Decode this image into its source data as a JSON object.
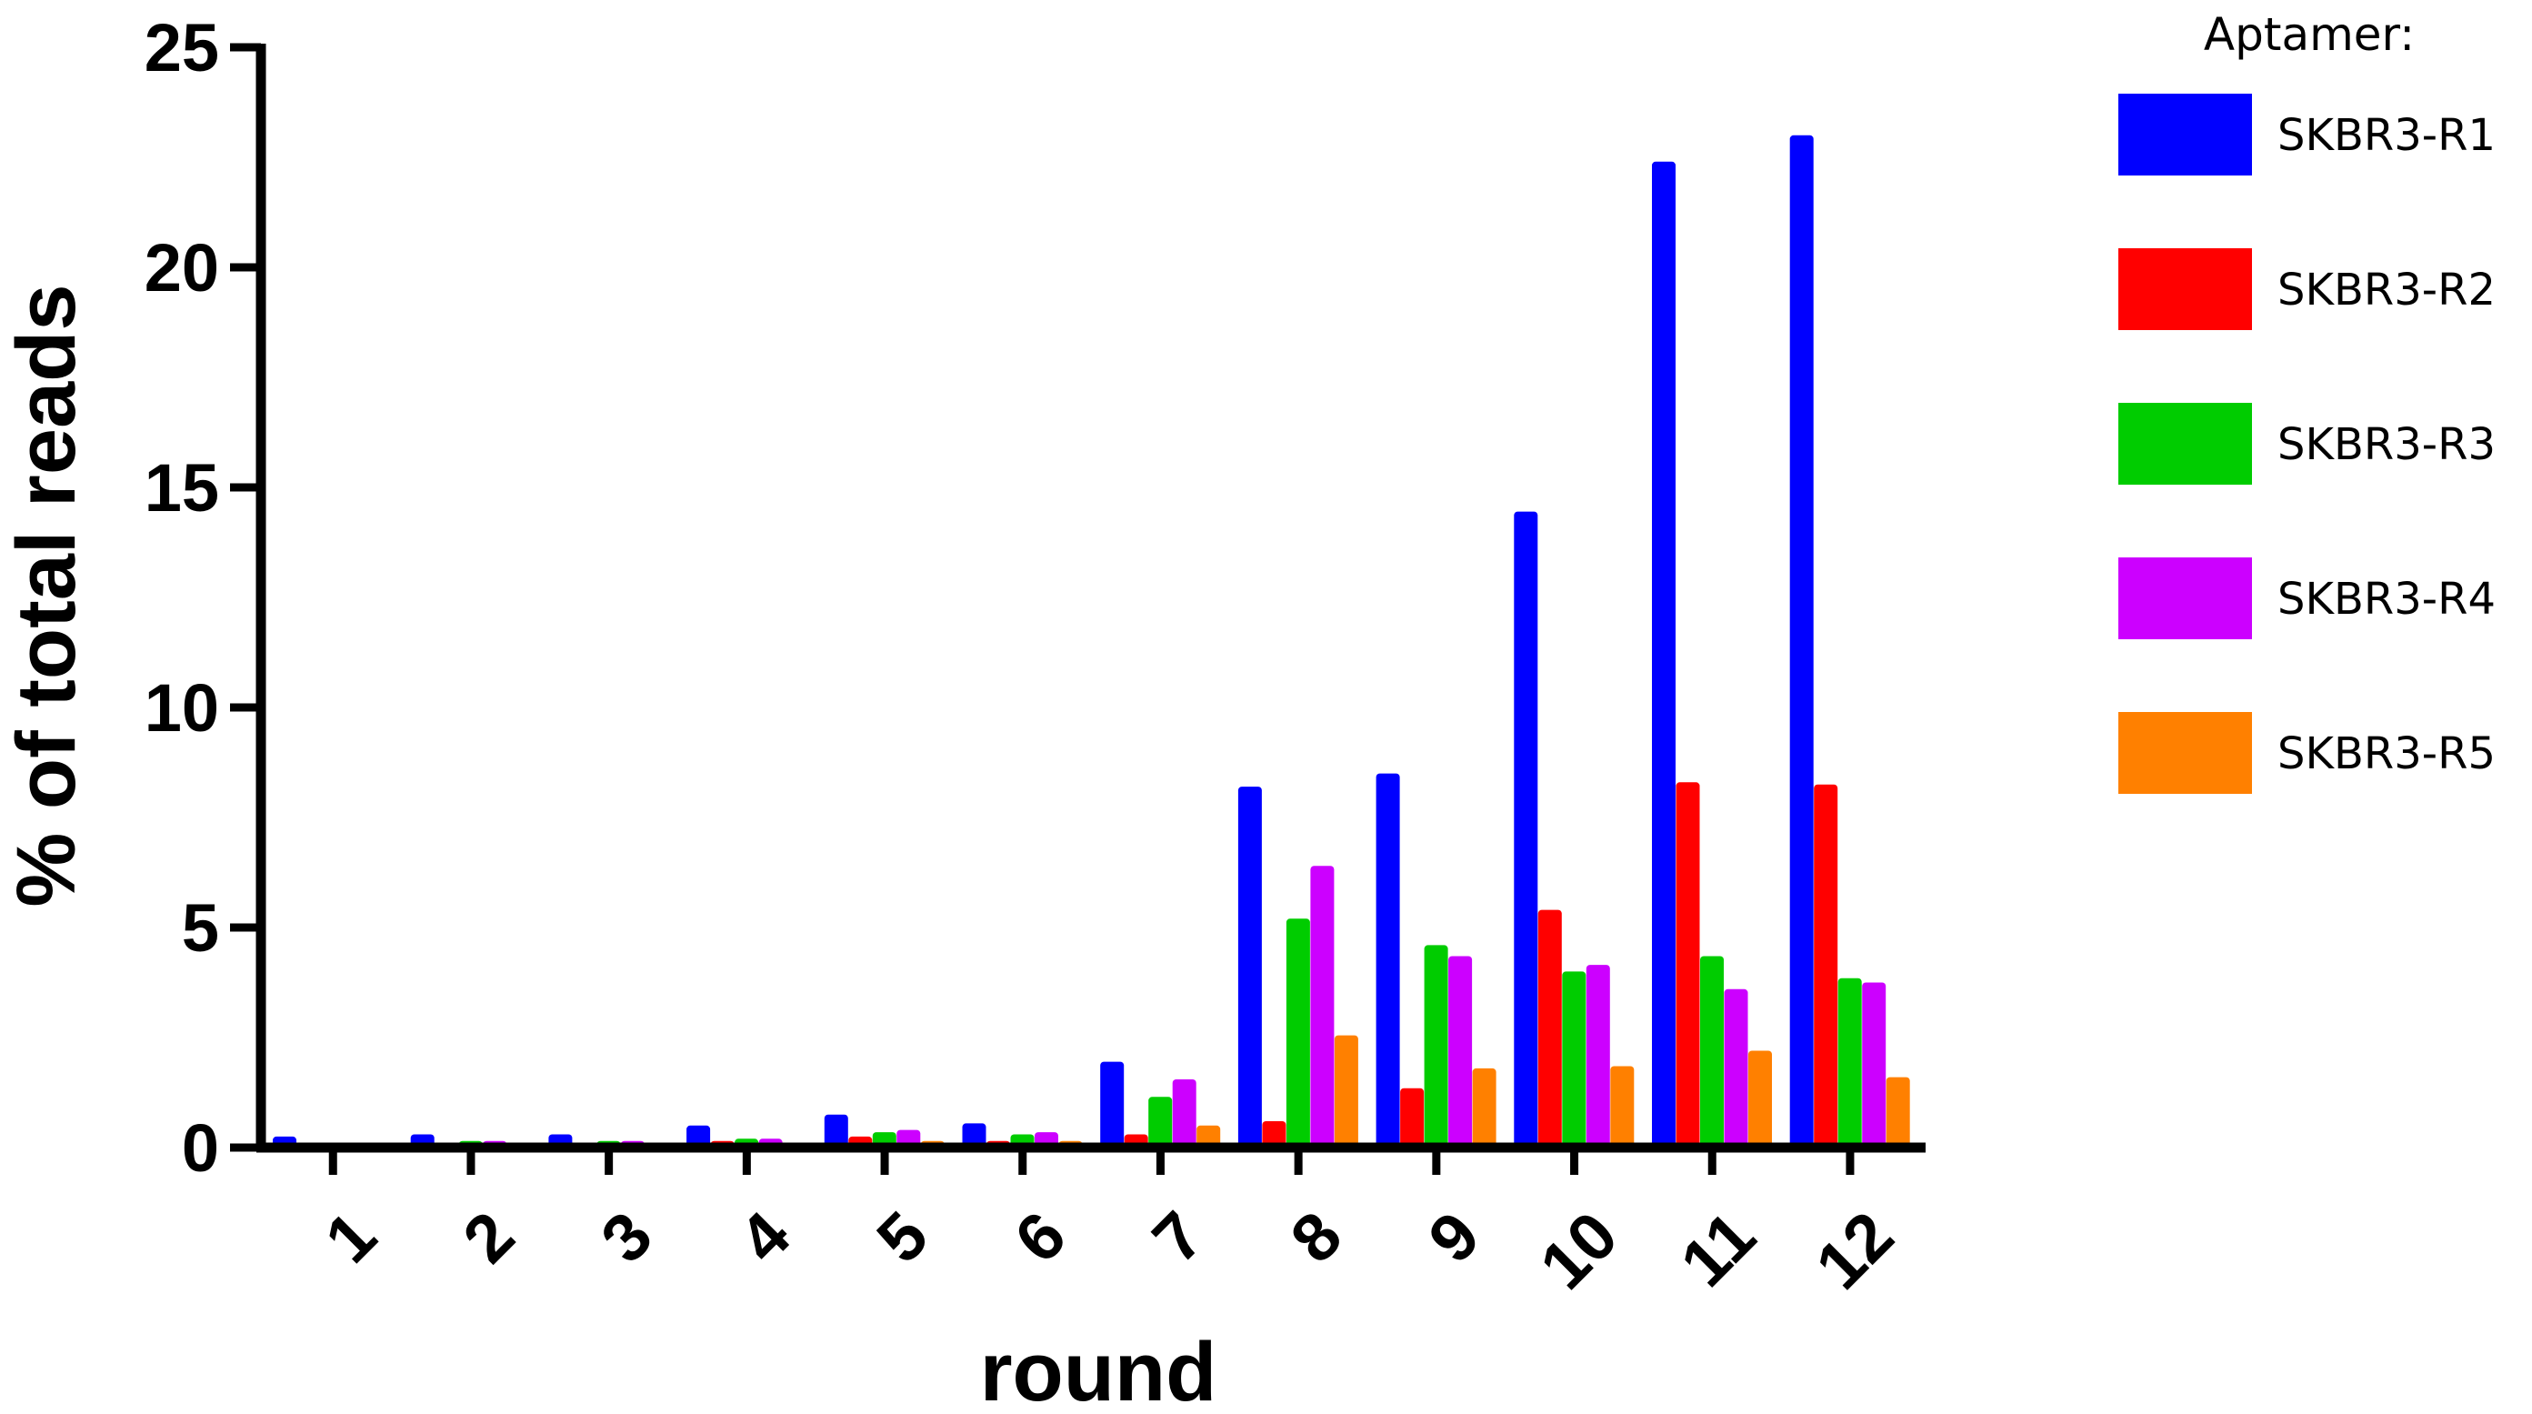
{
  "chart_data": {
    "type": "bar",
    "xlabel": "round",
    "ylabel": "% of total reads",
    "ylim": [
      0,
      25
    ],
    "yticks": [
      0,
      5,
      10,
      15,
      20,
      25
    ],
    "categories": [
      "1",
      "2",
      "3",
      "4",
      "5",
      "6",
      "7",
      "8",
      "9",
      "10",
      "11",
      "12"
    ],
    "legend": {
      "title": "Aptamer:",
      "placement": "right"
    },
    "grid": false,
    "series": [
      {
        "name": "SKBR3-R1",
        "color": "#0000ff",
        "values": [
          0.25,
          0.3,
          0.3,
          0.5,
          0.75,
          0.55,
          1.95,
          8.2,
          8.5,
          14.45,
          22.4,
          23.0
        ]
      },
      {
        "name": "SKBR3-R2",
        "color": "#ff0000",
        "values": [
          0.1,
          0.1,
          0.1,
          0.15,
          0.25,
          0.15,
          0.3,
          0.6,
          1.35,
          5.4,
          8.3,
          8.25
        ]
      },
      {
        "name": "SKBR3-R3",
        "color": "#00cc00",
        "values": [
          0.1,
          0.15,
          0.15,
          0.2,
          0.35,
          0.3,
          1.15,
          5.2,
          4.6,
          4.0,
          4.35,
          3.85
        ]
      },
      {
        "name": "SKBR3-R4",
        "color": "#cc00ff",
        "values": [
          0.1,
          0.15,
          0.15,
          0.2,
          0.4,
          0.35,
          1.55,
          6.4,
          4.35,
          4.15,
          3.6,
          3.75
        ]
      },
      {
        "name": "SKBR3-R5",
        "color": "#ff8000",
        "values": [
          0.05,
          0.1,
          0.1,
          0.1,
          0.15,
          0.15,
          0.5,
          2.55,
          1.8,
          1.85,
          2.2,
          1.6
        ]
      }
    ]
  }
}
